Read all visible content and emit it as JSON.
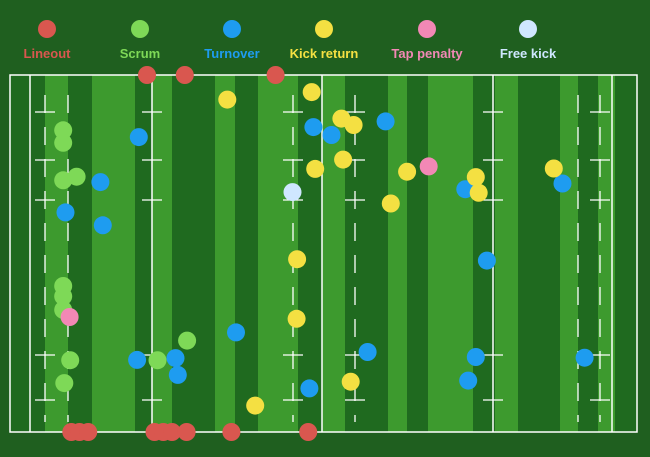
{
  "chart_data": {
    "type": "scatter",
    "title": "",
    "xlabel": "",
    "ylabel": "",
    "xlim": [
      0,
      100
    ],
    "ylim": [
      0,
      100
    ],
    "grid": false,
    "legend_position": "top",
    "colors": {
      "background": "#1f5f1f",
      "stripe_light": "#3d9a2e",
      "stripe_dark": "#1f6a1f",
      "lines": "#ffffff"
    },
    "series": [
      {
        "name": "Lineout",
        "color": "#d9574f",
        "points": [
          [
            20.1,
            100
          ],
          [
            26.6,
            100
          ],
          [
            42.2,
            100
          ],
          [
            7.1,
            0
          ],
          [
            8.5,
            0
          ],
          [
            10.0,
            0
          ],
          [
            21.4,
            0
          ],
          [
            22.9,
            0
          ],
          [
            24.4,
            0
          ],
          [
            26.9,
            0
          ],
          [
            34.6,
            0
          ],
          [
            47.8,
            0
          ]
        ]
      },
      {
        "name": "Scrum",
        "color": "#7ed957",
        "points": [
          [
            5.7,
            84.5
          ],
          [
            5.7,
            81.0
          ],
          [
            5.7,
            70.5
          ],
          [
            8.0,
            71.5
          ],
          [
            5.7,
            40.9
          ],
          [
            5.7,
            38.0
          ],
          [
            5.7,
            34.2
          ],
          [
            6.9,
            20.1
          ],
          [
            21.9,
            20.1
          ],
          [
            27.0,
            25.6
          ],
          [
            5.9,
            13.7
          ]
        ]
      },
      {
        "name": "Turnover",
        "color": "#1e9cf0",
        "points": [
          [
            18.7,
            82.6
          ],
          [
            48.7,
            85.4
          ],
          [
            51.8,
            83.2
          ],
          [
            61.1,
            87.0
          ],
          [
            12.1,
            70.0
          ],
          [
            6.1,
            61.5
          ],
          [
            12.5,
            57.9
          ],
          [
            74.8,
            68.0
          ],
          [
            91.5,
            69.6
          ],
          [
            78.5,
            48.0
          ],
          [
            35.4,
            27.9
          ],
          [
            18.4,
            20.2
          ],
          [
            25.0,
            20.7
          ],
          [
            25.4,
            16.0
          ],
          [
            58.0,
            22.4
          ],
          [
            76.6,
            21.0
          ],
          [
            95.3,
            20.8
          ],
          [
            48.0,
            12.2
          ],
          [
            75.3,
            14.4
          ]
        ]
      },
      {
        "name": "Kick return",
        "color": "#f4e042",
        "points": [
          [
            33.9,
            93.1
          ],
          [
            48.4,
            95.2
          ],
          [
            53.5,
            87.8
          ],
          [
            55.6,
            86.0
          ],
          [
            53.8,
            76.3
          ],
          [
            49.0,
            73.7
          ],
          [
            64.8,
            72.9
          ],
          [
            76.6,
            71.4
          ],
          [
            90.0,
            73.8
          ],
          [
            62.0,
            64.0
          ],
          [
            77.1,
            67.0
          ],
          [
            45.9,
            48.4
          ],
          [
            45.8,
            31.7
          ],
          [
            55.1,
            14.1
          ],
          [
            38.7,
            7.4
          ]
        ]
      },
      {
        "name": "Tap penalty",
        "color": "#f288b5",
        "points": [
          [
            6.8,
            32.2
          ],
          [
            68.5,
            74.4
          ]
        ]
      },
      {
        "name": "Free kick",
        "color": "#cfe7ff",
        "points": [
          [
            45.1,
            67.2
          ]
        ]
      }
    ]
  }
}
